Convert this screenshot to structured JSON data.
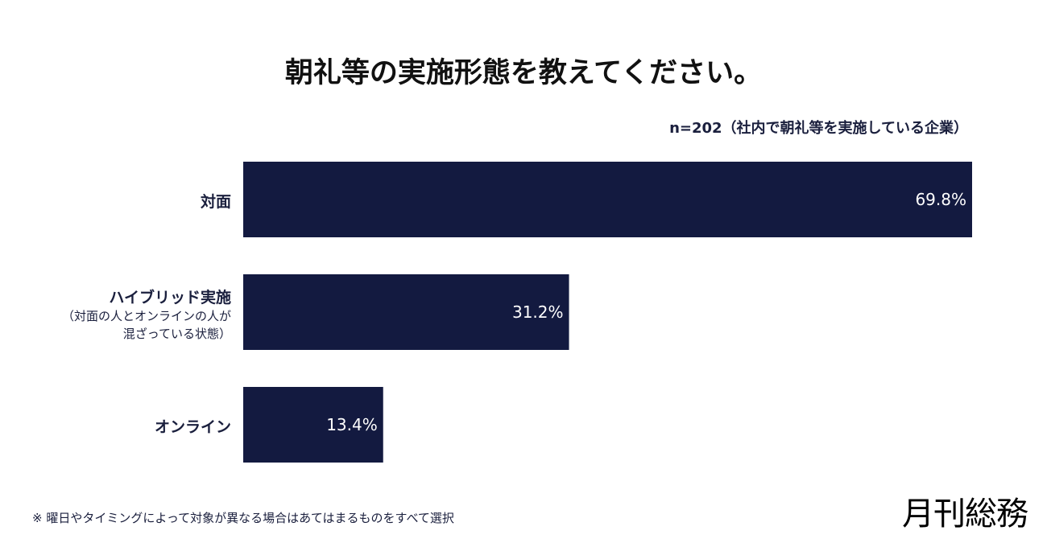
{
  "chart_data": {
    "type": "bar",
    "orientation": "horizontal",
    "title": "朝礼等の実施形態を教えてください。",
    "subtitle": "n=202（社内で朝礼等を実施している企業）",
    "categories": [
      {
        "label": "対面",
        "sublabel": []
      },
      {
        "label": "ハイブリッド実施",
        "sublabel": [
          "（対面の人とオンラインの人が",
          "混ざっている状態）"
        ]
      },
      {
        "label": "オンライン",
        "sublabel": []
      }
    ],
    "values": [
      69.8,
      31.2,
      13.4
    ],
    "data_labels": [
      "69.8%",
      "31.2%",
      "13.4%"
    ],
    "unit": "%",
    "bar_color": "#131a40",
    "label_color": "#ffffff",
    "grid": false,
    "legend": "none"
  },
  "footnote": "※ 曜日やタイミングによって対象が異なる場合はあてはまるものをすべて選択",
  "logo": "月刊総務"
}
